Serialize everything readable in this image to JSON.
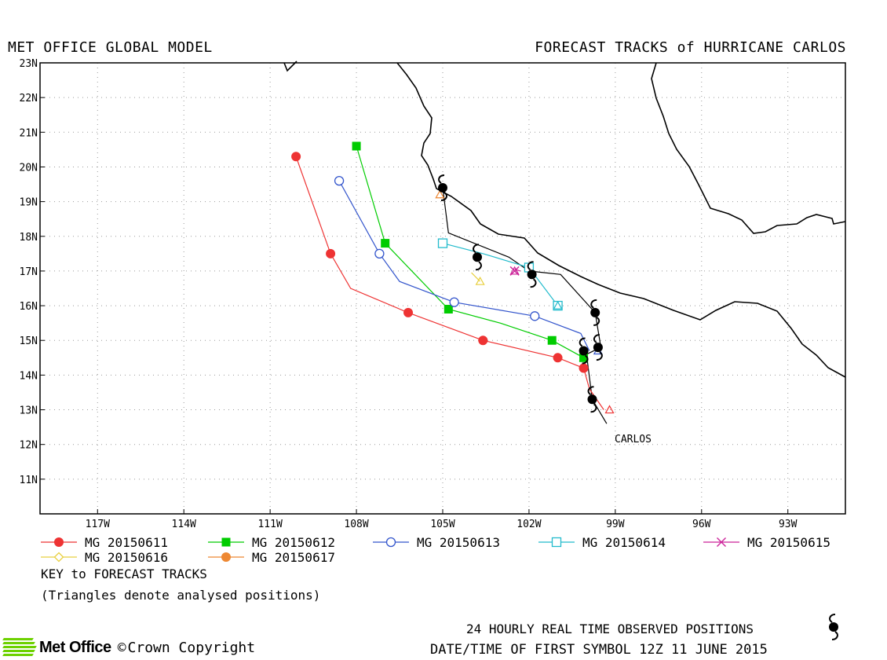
{
  "header": {
    "left_title": "MET OFFICE GLOBAL MODEL",
    "right_title": "FORECAST TRACKS of HURRICANE CARLOS"
  },
  "axes": {
    "lon_min": -119,
    "lon_max": -91,
    "lat_min": 10,
    "lat_max": 23,
    "lon_ticks": [
      {
        "lon": -117,
        "label": "117W"
      },
      {
        "lon": -114,
        "label": "114W"
      },
      {
        "lon": -111,
        "label": "111W"
      },
      {
        "lon": -108,
        "label": "108W"
      },
      {
        "lon": -105,
        "label": "105W"
      },
      {
        "lon": -102,
        "label": "102W"
      },
      {
        "lon": -99,
        "label": "99W"
      },
      {
        "lon": -96,
        "label": "96W"
      },
      {
        "lon": -93,
        "label": "93W"
      }
    ],
    "lat_ticks": [
      {
        "lat": 23,
        "label": "23N"
      },
      {
        "lat": 22,
        "label": "22N"
      },
      {
        "lat": 21,
        "label": "21N"
      },
      {
        "lat": 20,
        "label": "20N"
      },
      {
        "lat": 19,
        "label": "19N"
      },
      {
        "lat": 18,
        "label": "18N"
      },
      {
        "lat": 17,
        "label": "17N"
      },
      {
        "lat": 16,
        "label": "16N"
      },
      {
        "lat": 15,
        "label": "15N"
      },
      {
        "lat": 14,
        "label": "14N"
      },
      {
        "lat": 13,
        "label": "13N"
      },
      {
        "lat": 12,
        "label": "12N"
      },
      {
        "lat": 11,
        "label": "11N"
      }
    ],
    "grid": true
  },
  "storm": {
    "name": "CARLOS",
    "observed_positions": [
      {
        "lon": -99.3,
        "lat": 12.6
      },
      {
        "lon": -99.8,
        "lat": 13.3
      },
      {
        "lon": -100.0,
        "lat": 14.6
      },
      {
        "lon": -99.5,
        "lat": 14.8
      },
      {
        "lon": -99.7,
        "lat": 15.8
      },
      {
        "lon": -100.9,
        "lat": 16.9
      },
      {
        "lon": -102.0,
        "lat": 17.0
      },
      {
        "lon": -102.7,
        "lat": 17.4
      },
      {
        "lon": -104.8,
        "lat": 18.1
      },
      {
        "lon": -105.0,
        "lat": 19.4
      }
    ],
    "symbols": [
      {
        "lon": -99.8,
        "lat": 13.3
      },
      {
        "lon": -100.1,
        "lat": 14.7
      },
      {
        "lon": -99.6,
        "lat": 14.8
      },
      {
        "lon": -99.7,
        "lat": 15.8
      },
      {
        "lon": -101.9,
        "lat": 16.9
      },
      {
        "lon": -103.8,
        "lat": 17.4
      },
      {
        "lon": -105.0,
        "lat": 19.4
      }
    ]
  },
  "forecast_tracks": [
    {
      "name": "MG 20150611",
      "color": "#ee3333",
      "marker": "circle-filled",
      "points": [
        {
          "lon": -99.4,
          "lat": 13.0
        },
        {
          "lon": -99.9,
          "lat": 13.6
        },
        {
          "lon": -100.1,
          "lat": 14.2
        },
        {
          "lon": -101.0,
          "lat": 14.5
        },
        {
          "lon": -103.6,
          "lat": 15.0
        },
        {
          "lon": -106.2,
          "lat": 15.8
        },
        {
          "lon": -108.2,
          "lat": 16.5
        },
        {
          "lon": -108.9,
          "lat": 17.5
        },
        {
          "lon": -110.1,
          "lat": 20.3
        }
      ],
      "marked": [
        {
          "lon": -100.1,
          "lat": 14.2
        },
        {
          "lon": -101.0,
          "lat": 14.5
        },
        {
          "lon": -103.6,
          "lat": 15.0
        },
        {
          "lon": -106.2,
          "lat": 15.8
        },
        {
          "lon": -108.9,
          "lat": 17.5
        },
        {
          "lon": -110.1,
          "lat": 20.3
        }
      ]
    },
    {
      "name": "MG 20150612",
      "color": "#00cc00",
      "marker": "square-filled",
      "points": [
        {
          "lon": -100.1,
          "lat": 14.5
        },
        {
          "lon": -101.2,
          "lat": 15.0
        },
        {
          "lon": -103.0,
          "lat": 15.5
        },
        {
          "lon": -104.8,
          "lat": 15.9
        },
        {
          "lon": -107.0,
          "lat": 17.8
        },
        {
          "lon": -108.0,
          "lat": 20.6
        }
      ],
      "marked": [
        {
          "lon": -100.1,
          "lat": 14.5
        },
        {
          "lon": -101.2,
          "lat": 15.0
        },
        {
          "lon": -104.8,
          "lat": 15.9
        },
        {
          "lon": -107.0,
          "lat": 17.8
        },
        {
          "lon": -108.0,
          "lat": 20.6
        }
      ]
    },
    {
      "name": "MG 20150613",
      "color": "#3355cc",
      "marker": "circle-open",
      "points": [
        {
          "lon": -99.9,
          "lat": 14.7
        },
        {
          "lon": -100.2,
          "lat": 15.2
        },
        {
          "lon": -101.8,
          "lat": 15.7
        },
        {
          "lon": -104.6,
          "lat": 16.1
        },
        {
          "lon": -106.5,
          "lat": 16.7
        },
        {
          "lon": -107.2,
          "lat": 17.5
        },
        {
          "lon": -108.6,
          "lat": 19.6
        }
      ],
      "marked": [
        {
          "lon": -101.8,
          "lat": 15.7
        },
        {
          "lon": -104.6,
          "lat": 16.1
        },
        {
          "lon": -107.2,
          "lat": 17.5
        },
        {
          "lon": -108.6,
          "lat": 19.6
        }
      ]
    },
    {
      "name": "MG 20150614",
      "color": "#22bbcc",
      "marker": "square-open",
      "points": [
        {
          "lon": -101.0,
          "lat": 16.0
        },
        {
          "lon": -102.0,
          "lat": 17.1
        },
        {
          "lon": -103.6,
          "lat": 17.5
        },
        {
          "lon": -105.0,
          "lat": 17.8
        }
      ],
      "marked": [
        {
          "lon": -101.0,
          "lat": 16.0
        },
        {
          "lon": -102.0,
          "lat": 17.1
        },
        {
          "lon": -105.0,
          "lat": 17.8
        }
      ]
    },
    {
      "name": "MG 20150615",
      "color": "#cc2299",
      "marker": "cross",
      "points": [
        {
          "lon": -102.3,
          "lat": 17.0
        },
        {
          "lon": -102.5,
          "lat": 17.05
        }
      ],
      "marked": [
        {
          "lon": -102.5,
          "lat": 17.0
        }
      ]
    },
    {
      "name": "MG 20150616",
      "color": "#e8d040",
      "marker": "diamond",
      "points": [
        {
          "lon": -103.7,
          "lat": 16.7
        },
        {
          "lon": -104.0,
          "lat": 16.95
        }
      ],
      "marked": []
    },
    {
      "name": "MG 20150617",
      "color": "#ee8833",
      "marker": "circle-filled",
      "points": [],
      "marked": []
    }
  ],
  "analysed_positions": [
    {
      "lon": -99.2,
      "lat": 13.0,
      "color": "#ee3333"
    },
    {
      "lon": -100.1,
      "lat": 14.5,
      "color": "#00cc00"
    },
    {
      "lon": -99.6,
      "lat": 14.7,
      "color": "#3355cc"
    },
    {
      "lon": -101.0,
      "lat": 16.0,
      "color": "#22bbcc"
    },
    {
      "lon": -102.5,
      "lat": 17.0,
      "color": "#cc2299"
    },
    {
      "lon": -103.7,
      "lat": 16.7,
      "color": "#e8d040"
    },
    {
      "lon": -105.1,
      "lat": 19.2,
      "color": "#ee8833"
    }
  ],
  "legend": {
    "key_title": "KEY to FORECAST TRACKS",
    "triangles_note": "(Triangles denote analysed positions)"
  },
  "footer": {
    "observed_label": "24 HOURLY REAL TIME OBSERVED POSITIONS",
    "datetime_label": "DATE/TIME OF FIRST SYMBOL 12Z 11 JUNE 2015",
    "logo_text": "Met Office",
    "copyright_text": "Crown Copyright"
  }
}
